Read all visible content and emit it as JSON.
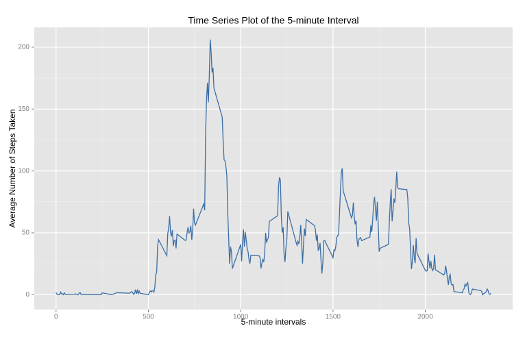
{
  "chart_data": {
    "type": "line",
    "title": "Time Series Plot of the 5-minute Interval",
    "x_label": "5-minute intervals",
    "y_label": "Average Number of Steps Taken",
    "x": [
      0,
      5,
      10,
      15,
      20,
      25,
      30,
      35,
      40,
      45,
      50,
      55,
      100,
      105,
      110,
      115,
      120,
      125,
      130,
      135,
      140,
      145,
      150,
      155,
      200,
      230,
      245,
      250,
      300,
      330,
      400,
      410,
      420,
      425,
      430,
      435,
      440,
      445,
      450,
      455,
      500,
      505,
      510,
      515,
      520,
      525,
      530,
      535,
      540,
      545,
      550,
      555,
      600,
      605,
      610,
      615,
      620,
      625,
      630,
      635,
      640,
      645,
      650,
      655,
      700,
      705,
      710,
      715,
      720,
      725,
      730,
      735,
      740,
      745,
      750,
      755,
      800,
      805,
      810,
      815,
      820,
      825,
      830,
      835,
      840,
      845,
      850,
      855,
      900,
      905,
      910,
      915,
      920,
      925,
      930,
      935,
      940,
      945,
      950,
      955,
      1000,
      1005,
      1010,
      1015,
      1020,
      1025,
      1030,
      1035,
      1040,
      1045,
      1050,
      1055,
      1100,
      1105,
      1110,
      1115,
      1120,
      1125,
      1130,
      1135,
      1140,
      1145,
      1150,
      1155,
      1200,
      1205,
      1210,
      1215,
      1220,
      1225,
      1230,
      1235,
      1240,
      1245,
      1250,
      1255,
      1300,
      1305,
      1310,
      1315,
      1320,
      1325,
      1330,
      1335,
      1340,
      1345,
      1350,
      1355,
      1400,
      1405,
      1410,
      1415,
      1420,
      1425,
      1430,
      1435,
      1440,
      1445,
      1450,
      1455,
      1500,
      1505,
      1510,
      1515,
      1520,
      1525,
      1530,
      1535,
      1540,
      1545,
      1550,
      1555,
      1600,
      1605,
      1610,
      1615,
      1620,
      1625,
      1630,
      1635,
      1640,
      1645,
      1650,
      1655,
      1700,
      1705,
      1710,
      1715,
      1720,
      1725,
      1730,
      1735,
      1740,
      1745,
      1750,
      1755,
      1800,
      1805,
      1810,
      1815,
      1820,
      1825,
      1830,
      1835,
      1840,
      1845,
      1850,
      1855,
      1900,
      1905,
      1910,
      1915,
      1920,
      1925,
      1930,
      1935,
      1940,
      1945,
      1950,
      1955,
      2000,
      2005,
      2010,
      2015,
      2020,
      2025,
      2030,
      2035,
      2040,
      2045,
      2050,
      2055,
      2100,
      2105,
      2110,
      2115,
      2120,
      2125,
      2130,
      2135,
      2140,
      2145,
      2150,
      2155,
      2200,
      2205,
      2210,
      2215,
      2220,
      2225,
      2230,
      2235,
      2240,
      2245,
      2250,
      2255,
      2300,
      2305,
      2310,
      2315,
      2320,
      2325,
      2330,
      2335,
      2340,
      2345,
      2350,
      2355
    ],
    "series": [
      {
        "name": "steps",
        "color": "#3b6ea5",
        "values": [
          1.7,
          0.3,
          0.1,
          0.2,
          0.1,
          2.1,
          0.5,
          0.9,
          0,
          1.5,
          0.3,
          0.1,
          0.3,
          0.7,
          0.2,
          0.3,
          0,
          1.1,
          1.8,
          0.2,
          0.2,
          0.4,
          0.3,
          0,
          0,
          0,
          0,
          1.5,
          0,
          1.6,
          1.2,
          2.6,
          0.3,
          0.9,
          4.1,
          0.7,
          3.5,
          0.8,
          3.1,
          1.1,
          0,
          1.5,
          3,
          2.2,
          3.3,
          3,
          2.1,
          6.1,
          16,
          18.3,
          39.5,
          44.5,
          31.5,
          49.3,
          53.8,
          63.5,
          50,
          47.1,
          52.2,
          39.3,
          44,
          44.2,
          37.4,
          49,
          43.8,
          44.4,
          50.5,
          54.5,
          49.9,
          50.9,
          55.7,
          44.3,
          52.3,
          69.5,
          57.8,
          56.2,
          73.4,
          68.2,
          129.4,
          157.5,
          171.2,
          155.4,
          177.3,
          206.2,
          195.9,
          179.6,
          183.4,
          167,
          143.5,
          124,
          109.1,
          108.1,
          103.7,
          96,
          66.2,
          45.2,
          24.8,
          38.8,
          35,
          21.1,
          40.6,
          27,
          42.4,
          52.7,
          38.9,
          50.8,
          44.3,
          37.4,
          34.7,
          28.3,
          25.1,
          31.9,
          31.4,
          29.7,
          21.3,
          25.5,
          28.4,
          26.5,
          33.4,
          50,
          42,
          44.6,
          46,
          59.2,
          63.9,
          87.7,
          94.8,
          92.8,
          63.4,
          50.2,
          54.5,
          32.4,
          26.5,
          37.7,
          45.1,
          67.3,
          42.3,
          39.9,
          43.3,
          41,
          46.2,
          56.4,
          42.8,
          25.1,
          40,
          53.5,
          47.3,
          60.8,
          55.8,
          52,
          43.6,
          48.7,
          35.5,
          37.5,
          41.8,
          27.5,
          17.1,
          26.1,
          43.6,
          43.8,
          30,
          36.1,
          35.5,
          38.8,
          46,
          47.8,
          48.1,
          65.3,
          82.9,
          98.7,
          102.1,
          84,
          62.1,
          64.1,
          74.5,
          63.2,
          56.9,
          59.8,
          43.9,
          38.6,
          44.7,
          45.5,
          46.2,
          43.7,
          46.6,
          56.3,
          50.7,
          61.2,
          73.4,
          79,
          68.9,
          59.7,
          75.1,
          56.5,
          34.8,
          37.5,
          40.7,
          58,
          74.7,
          85.3,
          59.3,
          67.8,
          77.7,
          74.2,
          85.3,
          99.5,
          86.6,
          85.6,
          84.9,
          77.8,
          58,
          53.4,
          36.3,
          20.7,
          27.4,
          40,
          30.2,
          25.5,
          45.7,
          33.5,
          19.6,
          19,
          19.3,
          33.3,
          26.8,
          21.2,
          27.3,
          21.3,
          19.5,
          21.3,
          32.3,
          20.2,
          15.9,
          17.2,
          23.5,
          19.2,
          12.5,
          8,
          14.7,
          16.3,
          8.7,
          7.8,
          8.1,
          2.6,
          1.5,
          3.7,
          4.8,
          8.5,
          7.1,
          8.7,
          9.8,
          2.2,
          0.3,
          0.1,
          1.6,
          4.6,
          3.3,
          2.8,
          0,
          0.8,
          1,
          1.6,
          2.6,
          4.7,
          3.3,
          0.6,
          0.2,
          1.1
        ]
      }
    ],
    "xlim": [
      -118,
      2473
    ],
    "ylim": [
      -12,
      216
    ],
    "xticks": [
      0,
      500,
      1000,
      1500,
      2000
    ],
    "yticks": [
      0,
      50,
      100,
      150,
      200
    ],
    "grid": true
  }
}
